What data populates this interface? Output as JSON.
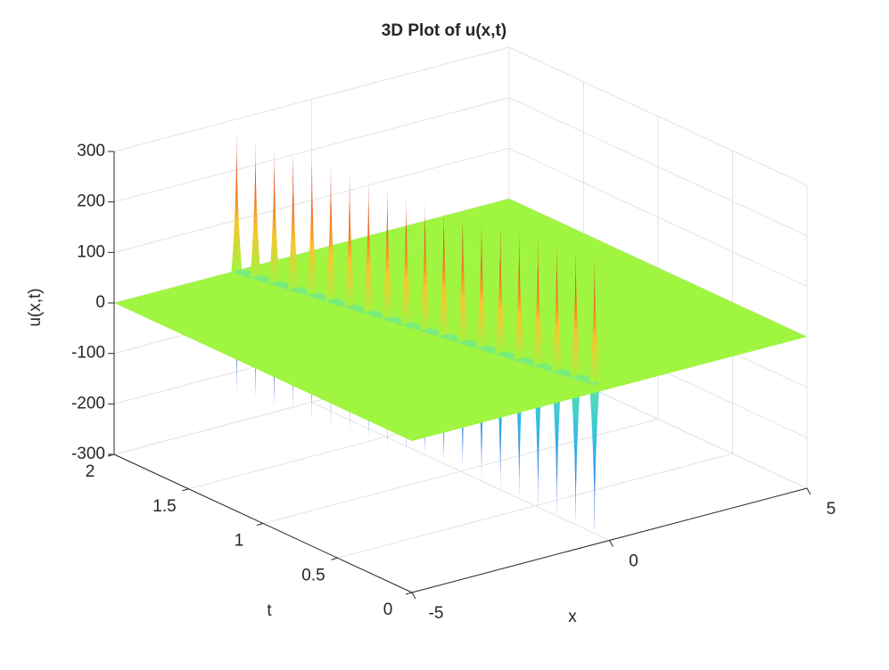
{
  "chart_data": {
    "type": "surface",
    "title": "3D Plot of u(x,t)",
    "xlabel": "x",
    "ylabel": "t",
    "zlabel": "u(x,t)",
    "xlim": [
      -5,
      5
    ],
    "xticks": [
      -5,
      0,
      5
    ],
    "ylim": [
      0,
      2
    ],
    "yticks": [
      0,
      0.5,
      1,
      1.5,
      2
    ],
    "zlim": [
      -300,
      300
    ],
    "zticks": [
      -300,
      -200,
      -100,
      0,
      100,
      200,
      300
    ],
    "grid": true,
    "surface_level": 0,
    "surface_color": "#a0f540",
    "ridge": {
      "t": [
        2,
        1.9,
        1.8,
        1.7,
        1.6,
        1.5,
        1.4,
        1.3,
        1.2,
        1.1,
        1,
        0.9,
        0.8,
        0.7,
        0.6,
        0.5,
        0.4,
        0.3,
        0.2,
        0.1
      ],
      "x": [
        -1.9,
        -1.8,
        -1.7,
        -1.6,
        -1.5,
        -1.4,
        -1.3,
        -1.2,
        -1.1,
        -1,
        -0.9,
        -0.8,
        -0.7,
        -0.6,
        -0.5,
        -0.4,
        -0.3,
        -0.2,
        -0.1,
        0
      ],
      "peak": [
        275,
        270,
        270,
        265,
        265,
        265,
        260,
        260,
        260,
        255,
        255,
        255,
        255,
        250,
        250,
        250,
        250,
        250,
        250,
        250
      ],
      "trough": [
        -240,
        -240,
        -245,
        -245,
        -250,
        -250,
        -250,
        -255,
        -255,
        -260,
        -260,
        -265,
        -265,
        -270,
        -275,
        -280,
        -285,
        -290,
        -295,
        -300
      ]
    }
  }
}
